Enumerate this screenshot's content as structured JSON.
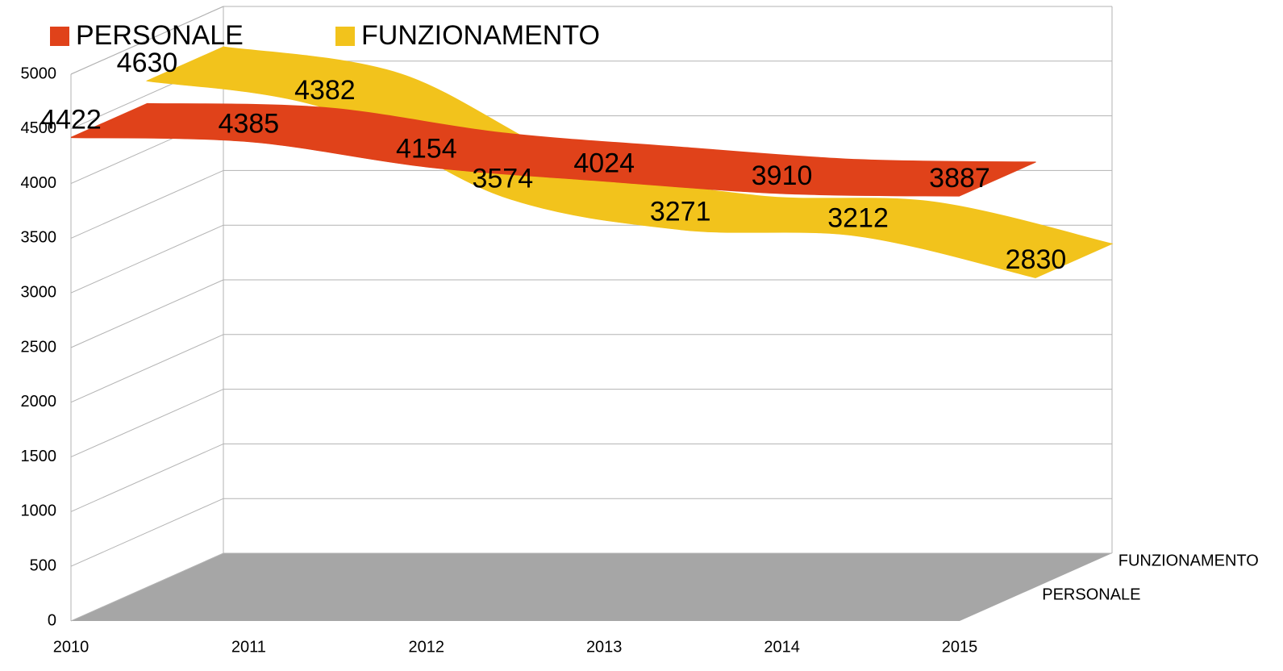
{
  "chart_data": {
    "type": "line3d",
    "categories": [
      "2010",
      "2011",
      "2012",
      "2013",
      "2014",
      "2015"
    ],
    "series": [
      {
        "name": "PERSONALE",
        "color": "#e0421a",
        "values": [
          4422,
          4385,
          4154,
          4024,
          3910,
          3887
        ]
      },
      {
        "name": "FUNZIONAMENTO",
        "color": "#f2c31c",
        "values": [
          4630,
          4382,
          3574,
          3271,
          3212,
          2830
        ]
      }
    ],
    "ylim": [
      0,
      5000
    ],
    "yticks": [
      0,
      500,
      1000,
      1500,
      2000,
      2500,
      3000,
      3500,
      4000,
      4500,
      5000
    ],
    "grid": true,
    "legend": "top"
  }
}
